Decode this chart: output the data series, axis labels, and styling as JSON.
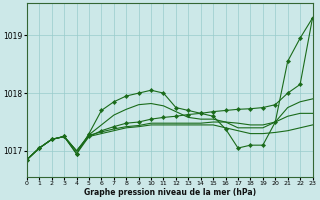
{
  "xlabel": "Graphe pression niveau de la mer (hPa)",
  "background_color": "#cce8e8",
  "grid_color": "#99cccc",
  "line_color": "#1a6b1a",
  "xlim": [
    0,
    23
  ],
  "ylim_bottom": 1016.55,
  "ylim_top": 1019.55,
  "yticks": [
    1017,
    1018,
    1019
  ],
  "xticks": [
    0,
    1,
    2,
    3,
    4,
    5,
    6,
    7,
    8,
    9,
    10,
    11,
    12,
    13,
    14,
    15,
    16,
    17,
    18,
    19,
    20,
    21,
    22,
    23
  ],
  "series": [
    {
      "x": [
        0,
        1,
        2,
        3,
        4,
        5,
        6,
        7,
        8,
        9,
        10,
        11,
        12,
        13,
        14,
        15,
        16,
        17,
        18,
        19,
        20,
        21,
        22,
        23
      ],
      "y": [
        1016.85,
        1017.05,
        1017.2,
        1017.25,
        1016.95,
        1017.25,
        1017.35,
        1017.42,
        1017.48,
        1017.5,
        1017.55,
        1017.58,
        1017.6,
        1017.63,
        1017.65,
        1017.68,
        1017.7,
        1017.72,
        1017.73,
        1017.75,
        1017.8,
        1018.0,
        1018.15,
        1019.3
      ],
      "marker": true
    },
    {
      "x": [
        0,
        1,
        2,
        3,
        4,
        5,
        6,
        7,
        8,
        9,
        10,
        11,
        12,
        13,
        14,
        15,
        16,
        17,
        18,
        19,
        20,
        21,
        22,
        23
      ],
      "y": [
        1016.85,
        1017.05,
        1017.2,
        1017.25,
        1016.95,
        1017.3,
        1017.7,
        1017.85,
        1017.95,
        1018.0,
        1018.05,
        1018.0,
        1017.75,
        1017.7,
        1017.65,
        1017.6,
        1017.38,
        1017.05,
        1017.1,
        1017.1,
        1017.5,
        1018.55,
        1018.95,
        1019.3
      ],
      "marker": true
    },
    {
      "x": [
        0,
        1,
        2,
        3,
        4,
        5,
        6,
        7,
        8,
        9,
        10,
        11,
        12,
        13,
        14,
        15,
        16,
        17,
        18,
        19,
        20,
        21,
        22,
        23
      ],
      "y": [
        1016.85,
        1017.05,
        1017.2,
        1017.25,
        1017.0,
        1017.25,
        1017.3,
        1017.35,
        1017.4,
        1017.42,
        1017.45,
        1017.45,
        1017.45,
        1017.45,
        1017.45,
        1017.45,
        1017.4,
        1017.35,
        1017.3,
        1017.3,
        1017.32,
        1017.35,
        1017.4,
        1017.45
      ],
      "marker": false
    },
    {
      "x": [
        0,
        1,
        2,
        3,
        4,
        5,
        6,
        7,
        8,
        9,
        10,
        11,
        12,
        13,
        14,
        15,
        16,
        17,
        18,
        19,
        20,
        21,
        22,
        23
      ],
      "y": [
        1016.85,
        1017.05,
        1017.2,
        1017.25,
        1017.0,
        1017.27,
        1017.33,
        1017.38,
        1017.42,
        1017.44,
        1017.48,
        1017.48,
        1017.48,
        1017.48,
        1017.48,
        1017.5,
        1017.5,
        1017.48,
        1017.45,
        1017.45,
        1017.5,
        1017.6,
        1017.65,
        1017.65
      ],
      "marker": false
    },
    {
      "x": [
        0,
        1,
        2,
        3,
        4,
        5,
        6,
        7,
        8,
        9,
        10,
        11,
        12,
        13,
        14,
        15,
        16,
        17,
        18,
        19,
        20,
        21,
        22,
        23
      ],
      "y": [
        1016.85,
        1017.05,
        1017.2,
        1017.25,
        1017.0,
        1017.28,
        1017.45,
        1017.62,
        1017.72,
        1017.8,
        1017.82,
        1017.78,
        1017.68,
        1017.58,
        1017.55,
        1017.55,
        1017.5,
        1017.4,
        1017.4,
        1017.4,
        1017.5,
        1017.75,
        1017.85,
        1017.9
      ],
      "marker": false
    }
  ]
}
